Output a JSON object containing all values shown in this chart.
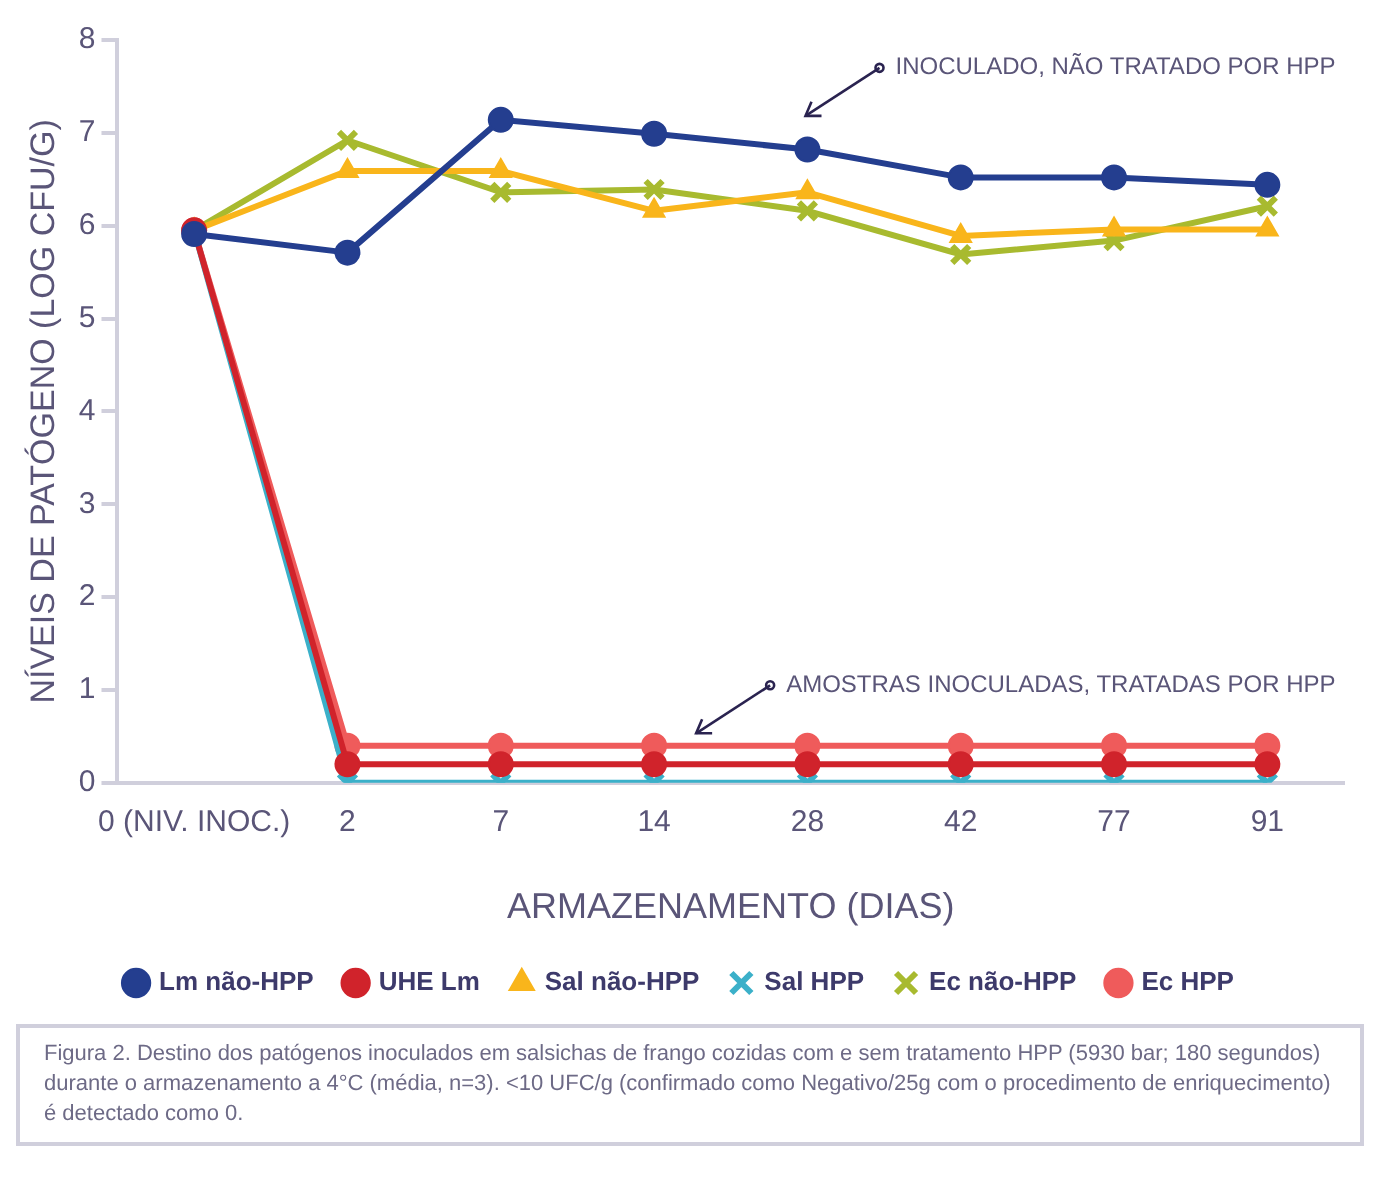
{
  "chart_data": {
    "type": "line",
    "xlabel": "ARMAZENAMENTO (DIAS)",
    "ylabel": "NÍVEIS DE PATÓGENO (LOG CFU/G)",
    "categories": [
      "0 (NIV. INOC.)",
      "2",
      "7",
      "14",
      "28",
      "42",
      "77",
      "91"
    ],
    "ylim": [
      0,
      8
    ],
    "yticks": [
      0,
      1,
      2,
      3,
      4,
      5,
      6,
      7,
      8
    ],
    "grid": false,
    "legend": "bottom",
    "line_style": "solid",
    "series": [
      {
        "name": "Lm não-HPP",
        "color": "#243e8f",
        "marker": "circle",
        "values": [
          5.91,
          5.71,
          7.14,
          6.99,
          6.82,
          6.52,
          6.52,
          6.44
        ]
      },
      {
        "name": "UHE Lm",
        "color": "#d0232b",
        "marker": "circle",
        "values": [
          5.95,
          0.2,
          0.2,
          0.2,
          0.2,
          0.2,
          0.2,
          0.2
        ]
      },
      {
        "name": "Sal não-HPP",
        "color": "#f9b51b",
        "marker": "triangle",
        "values": [
          5.95,
          6.59,
          6.59,
          6.16,
          6.36,
          5.89,
          5.96,
          5.96
        ]
      },
      {
        "name": "Sal HPP",
        "color": "#3bb0c9",
        "marker": "cross",
        "values": [
          5.95,
          0,
          0,
          0,
          0,
          0,
          0,
          0
        ]
      },
      {
        "name": "Ec não-HPP",
        "color": "#a8ba2f",
        "marker": "cross",
        "values": [
          5.95,
          6.92,
          6.36,
          6.39,
          6.16,
          5.69,
          5.84,
          6.21
        ]
      },
      {
        "name": "Ec HPP",
        "color": "#ef5b5b",
        "marker": "circle",
        "values": [
          5.95,
          0.4,
          0.4,
          0.4,
          0.4,
          0.4,
          0.4,
          0.4
        ]
      }
    ],
    "annotations": [
      "INOCULADO, NÃO TRATADO POR HPP",
      "AMOSTRAS INOCULADAS, TRATADAS POR HPP",
      "Figura 2. Destino dos patógenos inoculados em salsichas de frango cozidas com e sem tratamento HPP (5930 bar; 180 segundos) durante o armazenamento a 4°C (média, n=3). <10 UFC/g (confirmado como Negativo/25g com o procedimento de enriquecimento) é detectado como 0."
    ]
  }
}
